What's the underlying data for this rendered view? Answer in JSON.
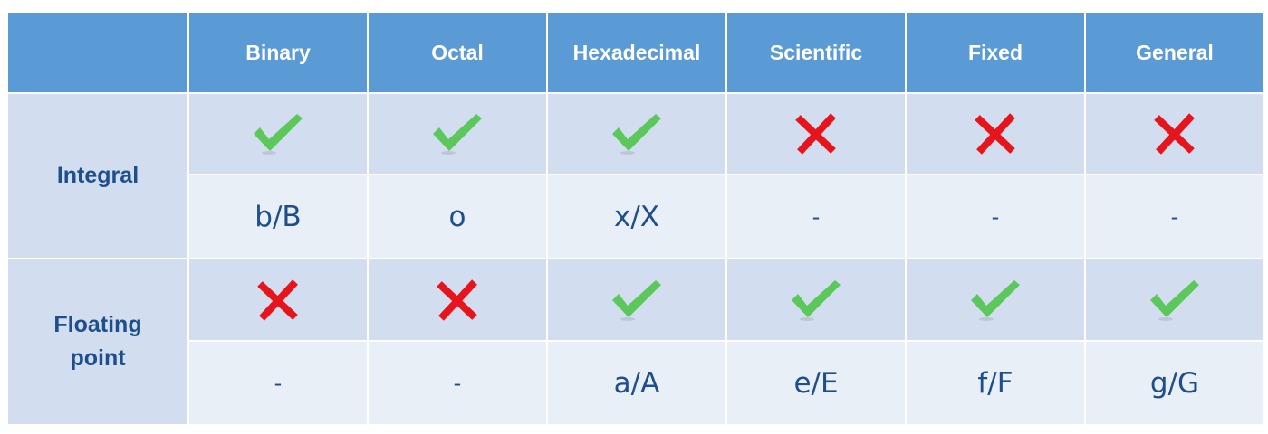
{
  "header": {
    "corner": "",
    "columns": [
      "Binary",
      "Octal",
      "Hexadecimal",
      "Scientific",
      "Fixed",
      "General"
    ]
  },
  "rows": [
    {
      "label_lines": [
        "Integral"
      ],
      "support": [
        "check",
        "check",
        "check",
        "cross",
        "cross",
        "cross"
      ],
      "codes": [
        "b/B",
        "o",
        "x/X",
        "-",
        "-",
        "-"
      ]
    },
    {
      "label_lines": [
        "Floating",
        "point"
      ],
      "support": [
        "cross",
        "cross",
        "check",
        "check",
        "check",
        "check"
      ],
      "codes": [
        "-",
        "-",
        "a/A",
        "e/E",
        "f/F",
        "g/G"
      ]
    }
  ],
  "colors": {
    "header_bg": "#5b9bd5",
    "row_band_dark": "#d2deef",
    "row_band_light": "#e9eff7",
    "text_blue": "#1f4e8c",
    "check_green": "#5cc85c",
    "cross_red": "#e8141c"
  }
}
